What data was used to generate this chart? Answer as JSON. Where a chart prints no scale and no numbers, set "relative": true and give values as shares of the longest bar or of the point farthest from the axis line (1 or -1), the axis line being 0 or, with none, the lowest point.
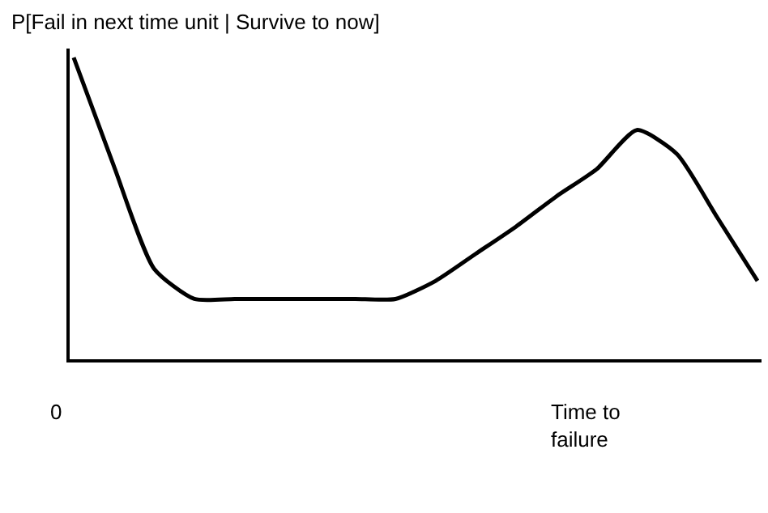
{
  "chart_data": {
    "type": "line",
    "relative": true,
    "ylabel": "P[Fail in next time unit | Survive to now]",
    "xlabel": "Time to\nfailure",
    "annotations": [
      "0"
    ],
    "color": "#000000",
    "categories": [
      null,
      null,
      null,
      null,
      null,
      null,
      null,
      null,
      null,
      null,
      null,
      null,
      null,
      null,
      null,
      null,
      null,
      null
    ],
    "values": [
      1.0,
      0.64,
      0.3,
      0.2,
      0.2,
      0.2,
      0.2,
      0.2,
      0.2,
      0.26,
      0.35,
      0.44,
      0.54,
      0.63,
      0.76,
      0.68,
      0.47,
      0.26
    ]
  }
}
